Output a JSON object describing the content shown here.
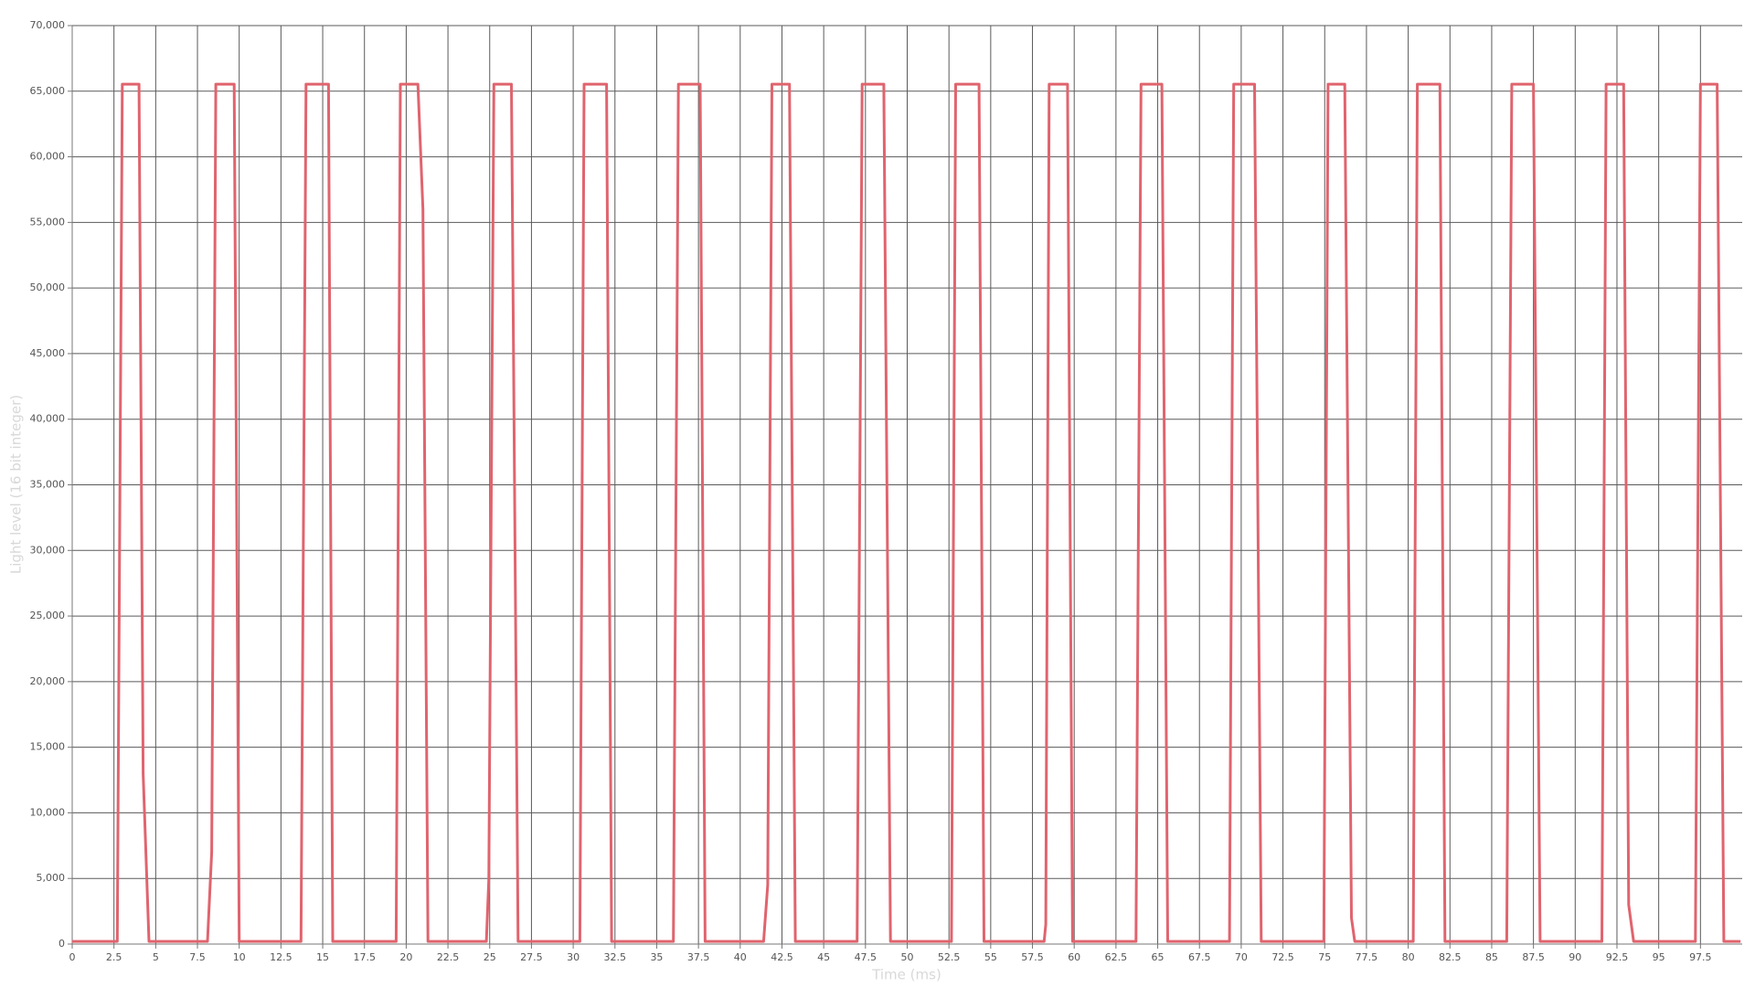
{
  "chart_data": {
    "type": "line",
    "x_label": "Time (ms)",
    "y_label": "Light level (16 bit integer)",
    "color": "#e0646e",
    "grid": true,
    "xlim": [
      0,
      100
    ],
    "ylim": [
      0,
      70000
    ],
    "xticks": [
      0,
      2.5,
      5,
      7.5,
      10,
      12.5,
      15,
      17.5,
      20,
      22.5,
      25,
      27.5,
      30,
      32.5,
      35,
      37.5,
      40,
      42.5,
      45,
      47.5,
      50,
      52.5,
      55,
      57.5,
      60,
      62.5,
      65,
      67.5,
      70,
      72.5,
      75,
      77.5,
      80,
      82.5,
      85,
      87.5,
      90,
      92.5,
      95,
      97.5
    ],
    "yticks": [
      0,
      {
        "value": 5000,
        "label": "5,000"
      },
      {
        "value": 10000,
        "label": "10,000"
      },
      {
        "value": 15000,
        "label": "15,000"
      },
      {
        "value": 20000,
        "label": "20,000"
      },
      {
        "value": 25000,
        "label": "25,000"
      },
      {
        "value": 30000,
        "label": "30,000"
      },
      {
        "value": 35000,
        "label": "35,000"
      },
      {
        "value": 40000,
        "label": "40,000"
      },
      {
        "value": 45000,
        "label": "45,000"
      },
      {
        "value": 50000,
        "label": "50,000"
      },
      {
        "value": 55000,
        "label": "55,000"
      },
      {
        "value": 60000,
        "label": "60,000"
      },
      {
        "value": 65000,
        "label": "65,000"
      },
      {
        "value": 70000,
        "label": "70,000"
      }
    ],
    "x": [
      0,
      2.7,
      3.0,
      4.0,
      4.25,
      4.6,
      8.1,
      8.35,
      8.6,
      9.7,
      10.0,
      13.7,
      14.0,
      15.35,
      15.6,
      19.4,
      19.65,
      20.7,
      21.0,
      21.3,
      24.8,
      24.95,
      25.25,
      26.3,
      26.7,
      30.4,
      30.65,
      32.0,
      32.3,
      36.0,
      36.3,
      37.6,
      37.9,
      41.4,
      41.65,
      41.9,
      42.95,
      43.3,
      47.0,
      47.3,
      48.6,
      49.0,
      52.65,
      52.9,
      54.3,
      54.6,
      58.2,
      58.3,
      58.5,
      59.6,
      59.9,
      63.7,
      64.0,
      65.25,
      65.6,
      69.3,
      69.55,
      70.8,
      71.2,
      74.95,
      75.2,
      76.2,
      76.6,
      76.8,
      80.3,
      80.55,
      81.9,
      82.2,
      85.9,
      86.2,
      87.5,
      87.9,
      91.6,
      91.85,
      92.9,
      93.2,
      93.5,
      97.2,
      97.5,
      98.5,
      98.9,
      99.9
    ],
    "values": [
      200,
      200,
      65535,
      65535,
      13000,
      200,
      200,
      7000,
      65535,
      65535,
      200,
      200,
      65535,
      65535,
      200,
      200,
      65535,
      65535,
      56000,
      200,
      200,
      5000,
      65535,
      65535,
      200,
      200,
      65535,
      65535,
      200,
      200,
      65535,
      65535,
      200,
      200,
      4500,
      65535,
      65535,
      200,
      200,
      65535,
      65535,
      200,
      200,
      65535,
      65535,
      200,
      200,
      1500,
      65535,
      65535,
      200,
      200,
      65535,
      65535,
      200,
      200,
      65535,
      65535,
      200,
      200,
      65535,
      65535,
      2000,
      200,
      200,
      65535,
      65535,
      200,
      200,
      65535,
      65535,
      200,
      200,
      65535,
      65535,
      3000,
      200,
      200,
      65535,
      65535,
      200,
      200
    ]
  }
}
